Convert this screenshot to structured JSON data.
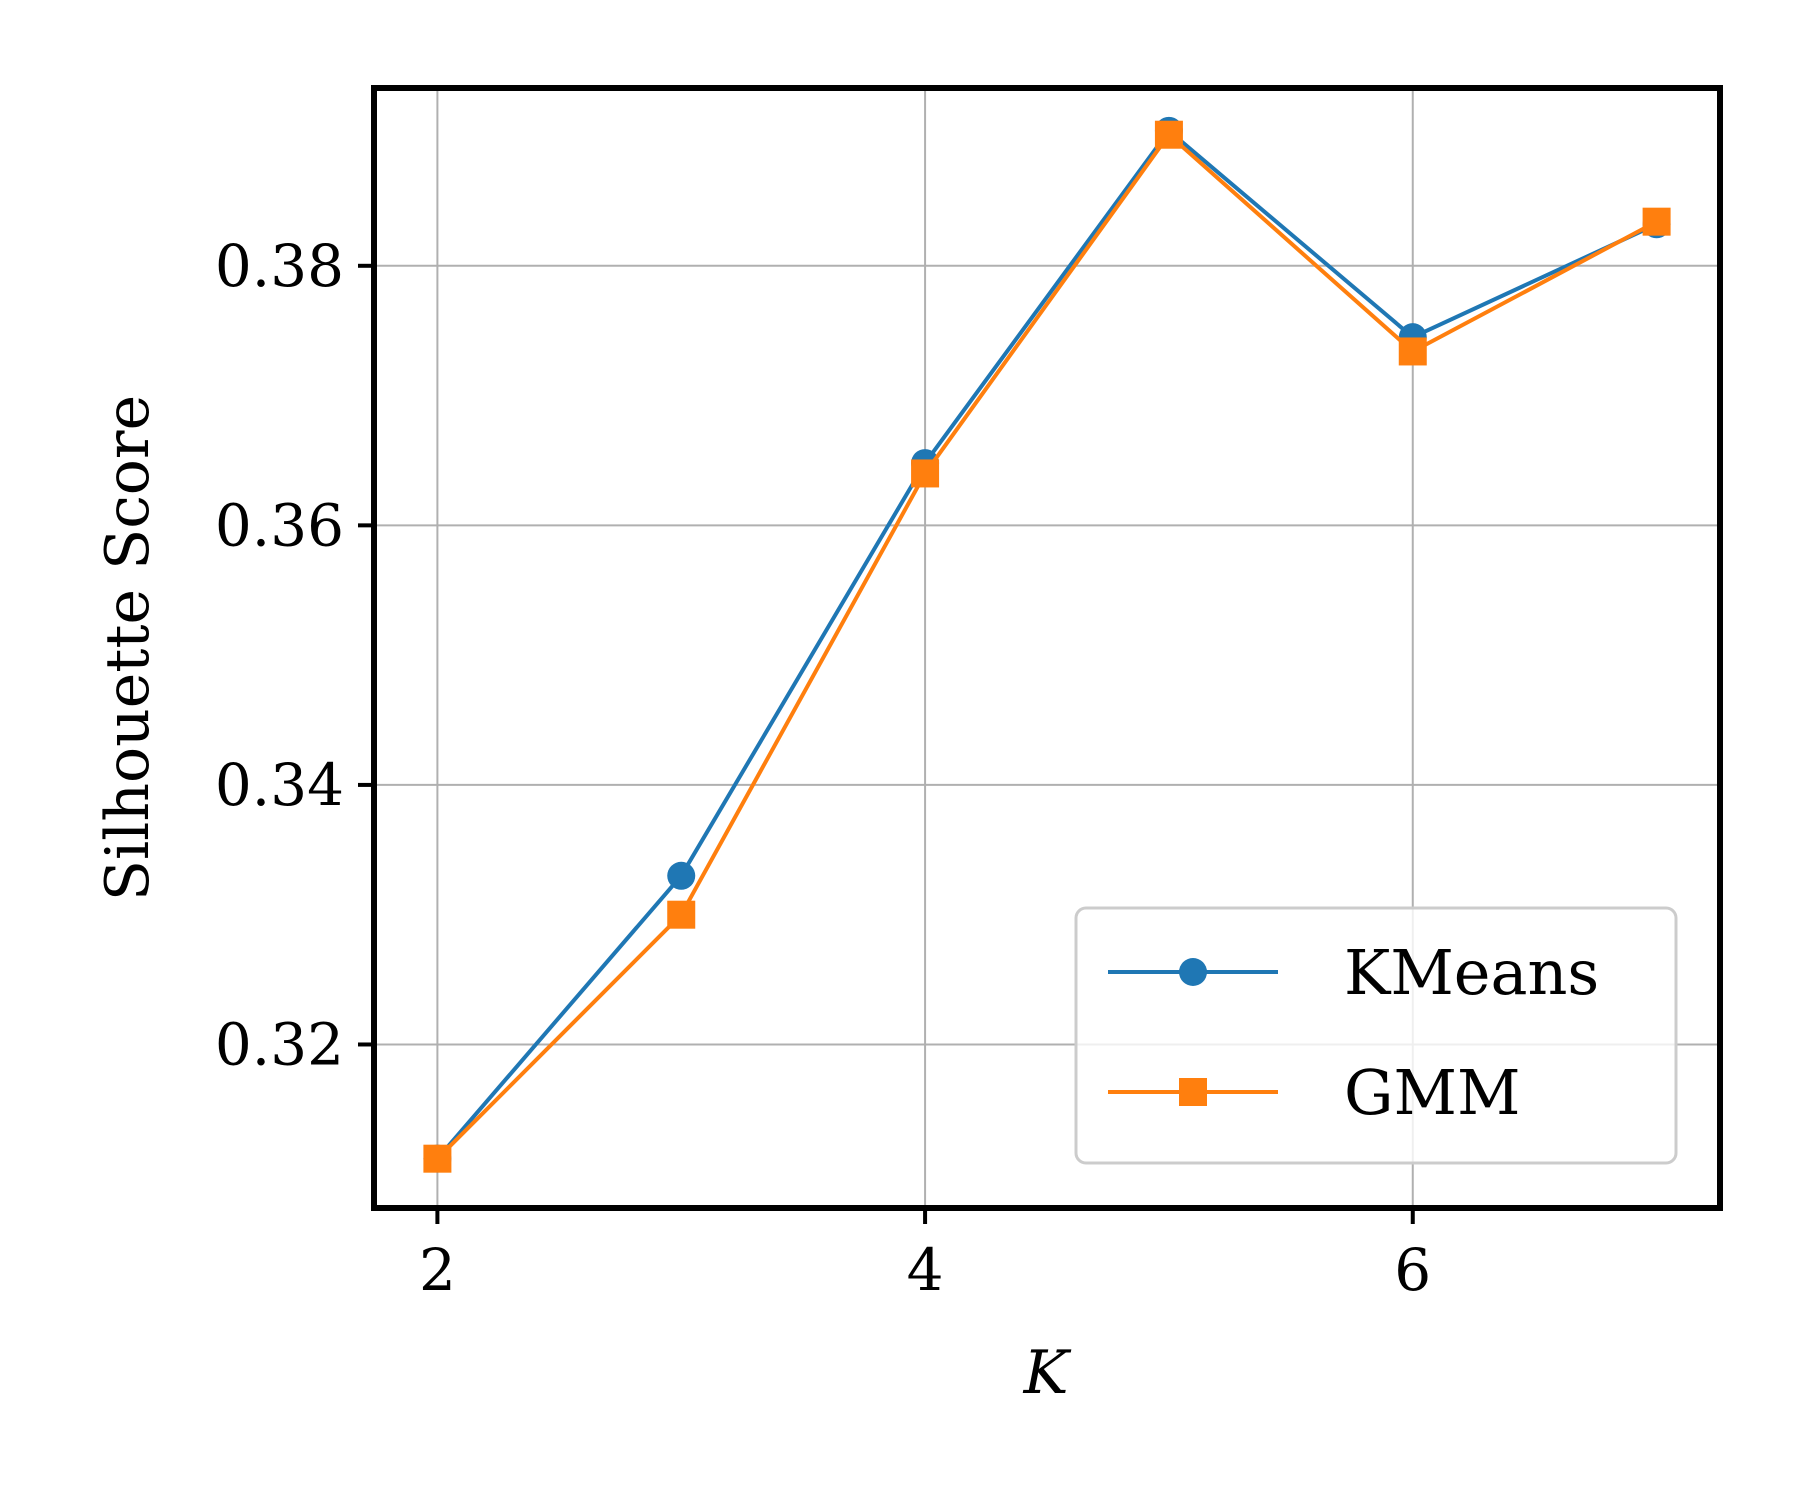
{
  "chart_data": {
    "type": "line",
    "title": "",
    "xlabel": "K",
    "ylabel": "Silhouette Score",
    "xlim": [
      1.74,
      7.26
    ],
    "ylim": [
      0.3074,
      0.3937
    ],
    "xticks": [
      2,
      4,
      6
    ],
    "xtick_labels": [
      "2",
      "4",
      "6"
    ],
    "yticks": [
      0.32,
      0.34,
      0.36,
      0.38
    ],
    "ytick_labels": [
      "0.32",
      "0.34",
      "0.36",
      "0.38"
    ],
    "grid": true,
    "legend_position": "lower right",
    "x": [
      2,
      3,
      4,
      5,
      6,
      7
    ],
    "series": [
      {
        "name": "KMeans",
        "marker": "circle",
        "color": "#1f77b4",
        "values": [
          0.3112,
          0.333,
          0.3648,
          0.3904,
          0.3745,
          0.3832
        ]
      },
      {
        "name": "GMM",
        "marker": "square",
        "color": "#ff7f0e",
        "values": [
          0.3112,
          0.33,
          0.364,
          0.3901,
          0.3734,
          0.3834
        ]
      }
    ]
  }
}
